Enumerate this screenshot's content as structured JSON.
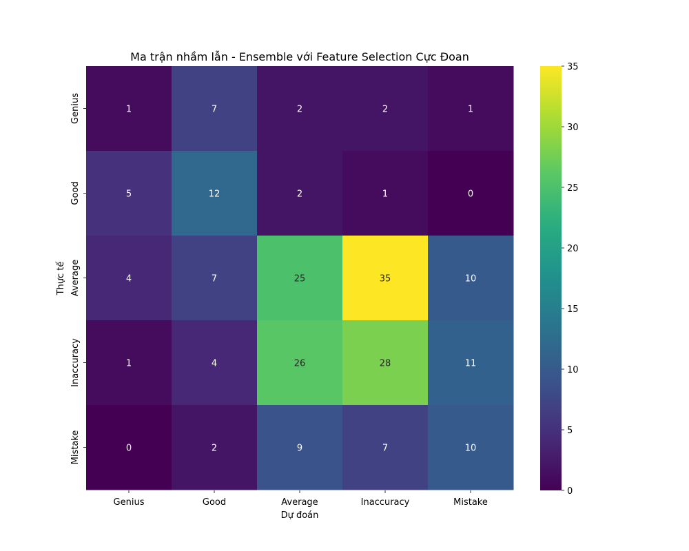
{
  "chart_data": {
    "type": "heatmap",
    "title": "Ma trận nhầm lẫn - Ensemble với Feature Selection Cực Đoan",
    "xlabel": "Dự đoán",
    "ylabel": "Thực tế",
    "x_categories": [
      "Genius",
      "Good",
      "Average",
      "Inaccuracy",
      "Mistake"
    ],
    "y_categories": [
      "Genius",
      "Good",
      "Average",
      "Inaccuracy",
      "Mistake"
    ],
    "values": [
      [
        1,
        7,
        2,
        2,
        1
      ],
      [
        5,
        12,
        2,
        1,
        0
      ],
      [
        4,
        7,
        25,
        35,
        10
      ],
      [
        1,
        4,
        26,
        28,
        11
      ],
      [
        0,
        2,
        9,
        7,
        10
      ]
    ],
    "colormap": "viridis",
    "colorbar": {
      "range": [
        0,
        35
      ],
      "ticks": [
        0,
        5,
        10,
        15,
        20,
        25,
        30,
        35
      ]
    },
    "annotations": true,
    "grid": false
  }
}
